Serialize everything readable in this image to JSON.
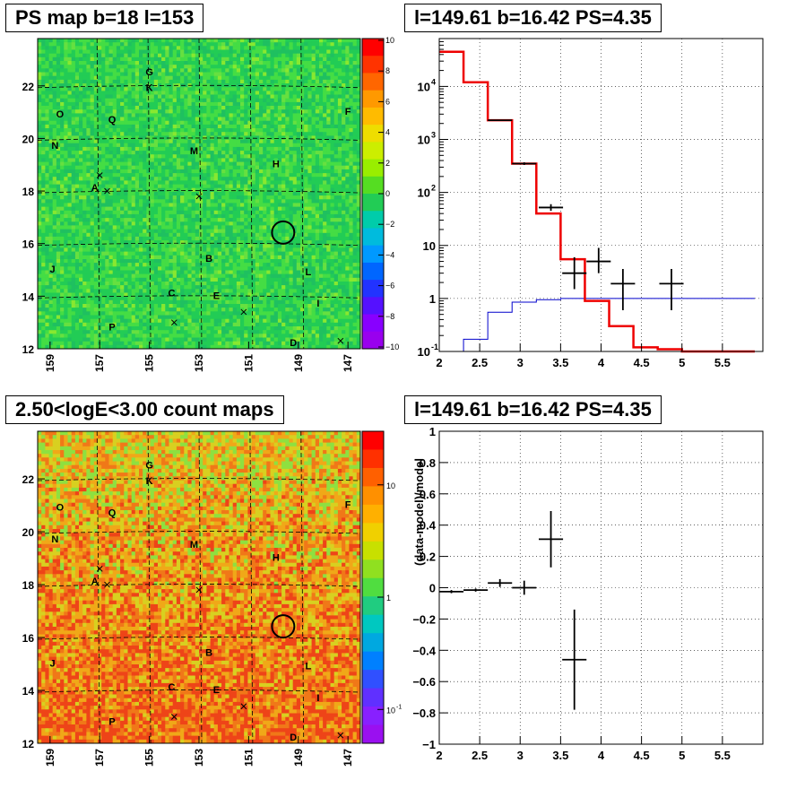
{
  "panels": {
    "ps_map_title": "PS map b=18 l=153",
    "spectrum_title": "l=149.61 b=16.42 PS=4.35",
    "count_map_title": "2.50<logE<3.00 count maps",
    "residual_title": "l=149.61 b=16.42 PS=4.35"
  },
  "sky_maps": {
    "x_ticks": [
      "159",
      "157",
      "155",
      "153",
      "151",
      "149",
      "147"
    ],
    "y_ticks": [
      "12",
      "14",
      "16",
      "18",
      "20",
      "22"
    ],
    "source_labels": [
      {
        "text": "G",
        "l": 155.0,
        "b": 22.4
      },
      {
        "text": "K",
        "l": 155.0,
        "b": 21.8
      },
      {
        "text": "F",
        "l": 147.0,
        "b": 20.9
      },
      {
        "text": "O",
        "l": 158.6,
        "b": 20.8
      },
      {
        "text": "Q",
        "l": 156.5,
        "b": 20.6
      },
      {
        "text": "N",
        "l": 158.8,
        "b": 19.6
      },
      {
        "text": "M",
        "l": 153.2,
        "b": 19.4
      },
      {
        "text": "H",
        "l": 149.9,
        "b": 18.9
      },
      {
        "text": "A",
        "l": 157.2,
        "b": 18.0
      },
      {
        "text": "B",
        "l": 152.6,
        "b": 15.3
      },
      {
        "text": "L",
        "l": 148.6,
        "b": 14.8
      },
      {
        "text": "J",
        "l": 158.9,
        "b": 14.9
      },
      {
        "text": "C",
        "l": 154.1,
        "b": 14.0
      },
      {
        "text": "E",
        "l": 152.3,
        "b": 13.9
      },
      {
        "text": "I",
        "l": 148.2,
        "b": 13.6
      },
      {
        "text": "P",
        "l": 156.5,
        "b": 12.7
      },
      {
        "text": "D",
        "l": 149.2,
        "b": 12.1
      }
    ],
    "x_markers": [
      {
        "l": 157.0,
        "b": 18.6
      },
      {
        "l": 156.7,
        "b": 18.0
      },
      {
        "l": 153.0,
        "b": 17.8
      },
      {
        "l": 154.0,
        "b": 13.0
      },
      {
        "l": 151.2,
        "b": 13.4
      },
      {
        "l": 147.3,
        "b": 12.3
      }
    ],
    "circle": {
      "l": 149.61,
      "b": 16.42,
      "r": 0.45
    }
  },
  "ps_colorbar": {
    "ticks": [
      "10",
      "8",
      "6",
      "4",
      "2",
      "0",
      "−2",
      "−4",
      "−6",
      "−8",
      "−10"
    ]
  },
  "count_colorbar": {
    "ticks": [
      "10",
      "1",
      "10"
    ],
    "sup": "-1"
  },
  "chart_data": [
    {
      "type": "heatmap",
      "title": "PS map b=18 l=153",
      "xlim": [
        159.5,
        146.5
      ],
      "ylim": [
        12,
        23.8
      ],
      "zlim": [
        -10,
        10
      ]
    },
    {
      "type": "line",
      "title": "l=149.61 b=16.42 PS=4.35",
      "xlim": [
        2,
        6
      ],
      "ylim": [
        0.1,
        80000
      ],
      "yscale": "log",
      "x_ticks": [
        "2",
        "2.5",
        "3",
        "3.5",
        "4",
        "4.5",
        "5",
        "5.5"
      ],
      "y_ticks": [
        "10",
        "1",
        "10",
        "10",
        "10",
        "10",
        "10",
        "1",
        "10"
      ],
      "y_tick_sups": [
        "-1",
        "",
        "",
        "2",
        "3",
        "4"
      ],
      "grid": true,
      "model_total": {
        "edges": [
          2.0,
          2.3,
          2.6,
          2.9,
          3.2,
          3.5,
          3.8,
          4.1,
          4.4,
          4.7,
          5.0,
          5.3,
          5.6,
          5.9
        ],
        "values": [
          45000,
          12000,
          2300,
          350,
          40,
          5.5,
          0.9,
          0.3,
          0.12,
          0.11,
          0.1,
          0.1,
          0.1
        ]
      },
      "background": {
        "edges": [
          2.0,
          2.3,
          2.6,
          2.9,
          3.2,
          3.5,
          3.8,
          4.1,
          4.4,
          4.7,
          5.0,
          5.3,
          5.6,
          5.9
        ],
        "values": [
          0.1,
          0.17,
          0.55,
          0.85,
          0.95,
          1.0,
          1.0,
          1.0,
          1.0,
          1.0,
          1.0,
          1.0,
          1.0
        ]
      },
      "data_points": [
        {
          "x": 2.75,
          "y": 2300,
          "xerr": 0.15,
          "ylo": 2250,
          "yhi": 2350
        },
        {
          "x": 3.05,
          "y": 350,
          "xerr": 0.15,
          "ylo": 330,
          "yhi": 370
        },
        {
          "x": 3.38,
          "y": 52,
          "xerr": 0.15,
          "ylo": 45,
          "yhi": 60
        },
        {
          "x": 3.67,
          "y": 3,
          "xerr": 0.15,
          "ylo": 1.5,
          "yhi": 6
        },
        {
          "x": 3.97,
          "y": 5,
          "xerr": 0.15,
          "ylo": 3,
          "yhi": 9
        },
        {
          "x": 4.27,
          "y": 1.9,
          "xerr": 0.15,
          "ylo": 0.6,
          "yhi": 3.6
        },
        {
          "x": 4.87,
          "y": 1.9,
          "xerr": 0.15,
          "ylo": 0.6,
          "yhi": 3.6
        }
      ]
    },
    {
      "type": "heatmap",
      "title": "2.50<logE<3.00 count maps",
      "xlim": [
        159.5,
        146.5
      ],
      "ylim": [
        12,
        23.8
      ],
      "zscale": "log",
      "zlim": [
        0.05,
        30
      ]
    },
    {
      "type": "scatter",
      "title": "l=149.61 b=16.42 PS=4.35",
      "ylabel": "(data-model)/model",
      "xlim": [
        2,
        6
      ],
      "ylim": [
        -1,
        1
      ],
      "x_ticks": [
        "2",
        "2.5",
        "3",
        "3.5",
        "4",
        "4.5",
        "5",
        "5.5"
      ],
      "y_ticks": [
        "−1",
        "−0.8",
        "−0.6",
        "−0.4",
        "−0.2",
        "0",
        "0.2",
        "0.4",
        "0.6",
        "0.8",
        "1"
      ],
      "grid": true,
      "points": [
        {
          "x": 2.15,
          "y": -0.025,
          "xerr": 0.15,
          "yerr": 0.01
        },
        {
          "x": 2.45,
          "y": -0.015,
          "xerr": 0.15,
          "yerr": 0.01
        },
        {
          "x": 2.75,
          "y": 0.03,
          "xerr": 0.15,
          "yerr": 0.025
        },
        {
          "x": 3.05,
          "y": 0.0,
          "xerr": 0.15,
          "yerr": 0.045
        },
        {
          "x": 3.38,
          "y": 0.31,
          "xerr": 0.15,
          "yerr": 0.18
        },
        {
          "x": 3.67,
          "y": -0.46,
          "xerr": 0.15,
          "yerr": 0.32
        }
      ]
    }
  ]
}
